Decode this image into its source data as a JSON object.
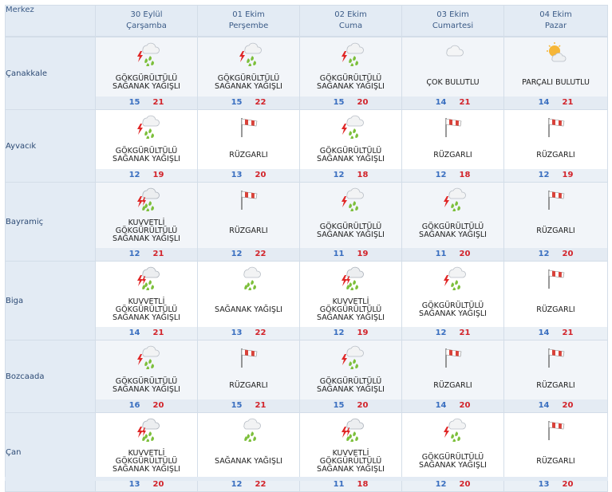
{
  "header": {
    "corner_label": "Merkez",
    "days": [
      {
        "date": "30 Eylül",
        "weekday": "Çarşamba"
      },
      {
        "date": "01 Ekim",
        "weekday": "Perşembe"
      },
      {
        "date": "02 Ekim",
        "weekday": "Cuma"
      },
      {
        "date": "03 Ekim",
        "weekday": "Cumartesi"
      },
      {
        "date": "04 Ekim",
        "weekday": "Pazar"
      }
    ]
  },
  "rows": [
    {
      "city": "Çanakkale",
      "lines": 2,
      "cells": [
        {
          "icon": "thunder-rain-icon",
          "desc": [
            "GÖKGÜRÜLTÜLÜ",
            "SAĞANAK YAĞIŞLI"
          ],
          "min": "15",
          "max": "21"
        },
        {
          "icon": "thunder-rain-icon",
          "desc": [
            "GÖKGÜRÜLTÜLÜ",
            "SAĞANAK YAĞIŞLI"
          ],
          "min": "15",
          "max": "22"
        },
        {
          "icon": "thunder-rain-icon",
          "desc": [
            "GÖKGÜRÜLTÜLÜ",
            "SAĞANAK YAĞIŞLI"
          ],
          "min": "15",
          "max": "20"
        },
        {
          "icon": "cloud-icon",
          "desc": [
            "ÇOK BULUTLU"
          ],
          "min": "14",
          "max": "21"
        },
        {
          "icon": "sun-cloud-icon",
          "desc": [
            "PARÇALI BULUTLU"
          ],
          "min": "14",
          "max": "21"
        }
      ]
    },
    {
      "city": "Ayvacık",
      "lines": 2,
      "cells": [
        {
          "icon": "thunder-rain-icon",
          "desc": [
            "GÖKGÜRÜLTÜLÜ",
            "SAĞANAK YAĞIŞLI"
          ],
          "min": "12",
          "max": "19"
        },
        {
          "icon": "windsock-icon",
          "desc": [
            "RÜZGARLI"
          ],
          "min": "13",
          "max": "20"
        },
        {
          "icon": "thunder-rain-icon",
          "desc": [
            "GÖKGÜRÜLTÜLÜ",
            "SAĞANAK YAĞIŞLI"
          ],
          "min": "12",
          "max": "18"
        },
        {
          "icon": "windsock-icon",
          "desc": [
            "RÜZGARLI"
          ],
          "min": "12",
          "max": "18"
        },
        {
          "icon": "windsock-icon",
          "desc": [
            "RÜZGARLI"
          ],
          "min": "12",
          "max": "19"
        }
      ]
    },
    {
      "city": "Bayramiç",
      "lines": 3,
      "cells": [
        {
          "icon": "heavy-thunder-rain-icon",
          "desc": [
            "KUVVETLİ",
            "GÖKGÜRÜLTÜLÜ",
            "SAĞANAK YAĞIŞLI"
          ],
          "min": "12",
          "max": "21"
        },
        {
          "icon": "windsock-icon",
          "desc": [
            "RÜZGARLI"
          ],
          "min": "12",
          "max": "22"
        },
        {
          "icon": "thunder-rain-icon",
          "desc": [
            "GÖKGÜRÜLTÜLÜ",
            "SAĞANAK YAĞIŞLI"
          ],
          "min": "11",
          "max": "19"
        },
        {
          "icon": "thunder-rain-icon",
          "desc": [
            "GÖKGÜRÜLTÜLÜ",
            "SAĞANAK YAĞIŞLI"
          ],
          "min": "11",
          "max": "20"
        },
        {
          "icon": "windsock-icon",
          "desc": [
            "RÜZGARLI"
          ],
          "min": "12",
          "max": "20"
        }
      ]
    },
    {
      "city": "Biga",
      "lines": 3,
      "cells": [
        {
          "icon": "heavy-thunder-rain-icon",
          "desc": [
            "KUVVETLİ",
            "GÖKGÜRÜLTÜLÜ",
            "SAĞANAK YAĞIŞLI"
          ],
          "min": "14",
          "max": "21"
        },
        {
          "icon": "rain-shower-icon",
          "desc": [
            "SAĞANAK YAĞIŞLI"
          ],
          "min": "13",
          "max": "22"
        },
        {
          "icon": "heavy-thunder-rain-icon",
          "desc": [
            "KUVVETLİ",
            "GÖKGÜRÜLTÜLÜ",
            "SAĞANAK YAĞIŞLI"
          ],
          "min": "12",
          "max": "19"
        },
        {
          "icon": "thunder-rain-icon",
          "desc": [
            "GÖKGÜRÜLTÜLÜ",
            "SAĞANAK YAĞIŞLI"
          ],
          "min": "12",
          "max": "21"
        },
        {
          "icon": "windsock-icon",
          "desc": [
            "RÜZGARLI"
          ],
          "min": "14",
          "max": "21"
        }
      ]
    },
    {
      "city": "Bozcaada",
      "lines": 2,
      "cells": [
        {
          "icon": "thunder-rain-icon",
          "desc": [
            "GÖKGÜRÜLTÜLÜ",
            "SAĞANAK YAĞIŞLI"
          ],
          "min": "16",
          "max": "20"
        },
        {
          "icon": "windsock-icon",
          "desc": [
            "RÜZGARLI"
          ],
          "min": "15",
          "max": "21"
        },
        {
          "icon": "thunder-rain-icon",
          "desc": [
            "GÖKGÜRÜLTÜLÜ",
            "SAĞANAK YAĞIŞLI"
          ],
          "min": "15",
          "max": "20"
        },
        {
          "icon": "windsock-icon",
          "desc": [
            "RÜZGARLI"
          ],
          "min": "14",
          "max": "20"
        },
        {
          "icon": "windsock-icon",
          "desc": [
            "RÜZGARLI"
          ],
          "min": "14",
          "max": "20"
        }
      ]
    },
    {
      "city": "Çan",
      "lines": 3,
      "cells": [
        {
          "icon": "heavy-thunder-rain-icon",
          "desc": [
            "KUVVETLİ",
            "GÖKGÜRÜLTÜLÜ",
            "SAĞANAK YAĞIŞLI"
          ],
          "min": "13",
          "max": "20"
        },
        {
          "icon": "rain-shower-icon",
          "desc": [
            "SAĞANAK YAĞIŞLI"
          ],
          "min": "12",
          "max": "22"
        },
        {
          "icon": "heavy-thunder-rain-icon",
          "desc": [
            "KUVVETLİ",
            "GÖKGÜRÜLTÜLÜ",
            "SAĞANAK YAĞIŞLI"
          ],
          "min": "11",
          "max": "18"
        },
        {
          "icon": "thunder-rain-icon",
          "desc": [
            "GÖKGÜRÜLTÜLÜ",
            "SAĞANAK YAĞIŞLI"
          ],
          "min": "12",
          "max": "20"
        },
        {
          "icon": "windsock-icon",
          "desc": [
            "RÜZGARLI"
          ],
          "min": "13",
          "max": "20"
        }
      ]
    }
  ],
  "colors": {
    "header_bg": "#e3ebf4",
    "min_temp": "#3a6fc0",
    "max_temp": "#d2232a",
    "rain_green": "#7cbf3a",
    "bolt_red": "#e02727"
  }
}
